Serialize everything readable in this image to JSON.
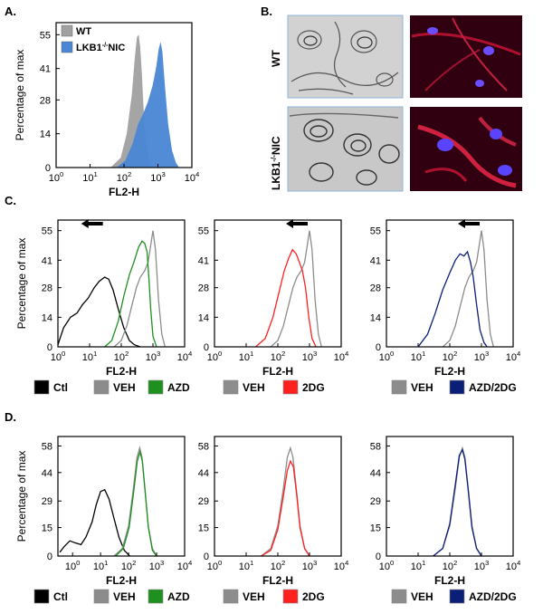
{
  "panel_labels": {
    "a": "A.",
    "b": "B.",
    "c": "C.",
    "d": "D."
  },
  "microscopy": {
    "row_wt": "WT",
    "row_ko": "LKB1-/-NIC",
    "ko_sup": "-/-"
  },
  "colors": {
    "wt_fill": "#a0a0a0",
    "ko_fill": "#4a86d4",
    "ctl": "#000000",
    "veh": "#8c8c8c",
    "azd": "#1f8f1f",
    "dg": "#ff2020",
    "azddg": "#0b1f78",
    "em_bg": "#d2d2d2",
    "em_border": "#8fb3d9",
    "fluo_bg": "#300010"
  },
  "chart_data": [
    {
      "id": "A",
      "type": "area",
      "xlabel": "FL2-H",
      "ylabel": "Percentage of max",
      "xscale": "log",
      "xlim": [
        1,
        10000
      ],
      "xtick_labels": [
        "10^0",
        "10^1",
        "10^2",
        "10^3",
        "10^4"
      ],
      "ylim": [
        0,
        60
      ],
      "yticks": [
        0,
        14,
        28,
        41,
        55
      ],
      "legend": [
        {
          "name": "WT",
          "color": "#a0a0a0"
        },
        {
          "name": "LKB1-/-NIC",
          "color": "#4a86d4"
        }
      ],
      "series": [
        {
          "name": "WT",
          "style": "fill",
          "color": "#a0a0a0",
          "x": [
            40,
            80,
            120,
            170,
            210,
            240,
            270,
            300,
            340,
            380,
            440,
            520,
            620,
            700
          ],
          "y": [
            0,
            4,
            14,
            30,
            46,
            54,
            55,
            50,
            38,
            24,
            12,
            5,
            1,
            0
          ]
        },
        {
          "name": "LKB1-/-NIC",
          "style": "fill",
          "color": "#4a86d4",
          "x": [
            60,
            110,
            180,
            260,
            360,
            500,
            700,
            900,
            1050,
            1200,
            1350,
            1600,
            2000,
            2600,
            3400,
            4200
          ],
          "y": [
            0,
            3,
            10,
            18,
            22,
            27,
            34,
            42,
            49,
            52,
            48,
            34,
            18,
            7,
            2,
            0
          ]
        }
      ]
    },
    {
      "id": "C1",
      "type": "line",
      "xlabel": "FL2-H",
      "ylabel": "Percentage of max",
      "xscale": "log",
      "xlim": [
        1,
        10000
      ],
      "xtick_labels": [
        "10^0",
        "10^1",
        "10^2",
        "10^3",
        "10^4"
      ],
      "ylim": [
        0,
        60
      ],
      "yticks": [
        0,
        14,
        28,
        41,
        55
      ],
      "arrow": "left",
      "legend": [
        {
          "name": "Ctl",
          "color": "#000000"
        },
        {
          "name": "VEH",
          "color": "#8c8c8c"
        },
        {
          "name": "AZD",
          "color": "#1f8f1f"
        }
      ],
      "series": [
        {
          "name": "Ctl",
          "color": "#000000",
          "x": [
            1,
            1.5,
            2.5,
            4,
            6,
            9,
            14,
            20,
            30,
            40,
            55,
            80,
            120,
            180,
            260,
            400
          ],
          "y": [
            1,
            9,
            14,
            16,
            20,
            23,
            28,
            31,
            33,
            32,
            27,
            18,
            9,
            3,
            1,
            0
          ]
        },
        {
          "name": "VEH",
          "color": "#8c8c8c",
          "x": [
            60,
            100,
            150,
            220,
            300,
            400,
            550,
            700,
            850,
            1000,
            1200,
            1500,
            1900,
            2400
          ],
          "y": [
            0,
            3,
            10,
            20,
            28,
            33,
            36,
            40,
            48,
            55,
            46,
            22,
            6,
            0
          ]
        },
        {
          "name": "AZD",
          "color": "#1f8f1f",
          "x": [
            30,
            50,
            80,
            120,
            180,
            250,
            350,
            450,
            550,
            650,
            750,
            850,
            1000,
            1300
          ],
          "y": [
            0,
            3,
            12,
            24,
            34,
            40,
            47,
            50,
            49,
            45,
            32,
            18,
            5,
            0
          ]
        }
      ]
    },
    {
      "id": "C2",
      "type": "line",
      "xlabel": "FL2-H",
      "ylabel": "",
      "xscale": "log",
      "xlim": [
        1,
        10000
      ],
      "xtick_labels": [
        "10^0",
        "10^1",
        "10^2",
        "10^3",
        "10^4"
      ],
      "ylim": [
        0,
        60
      ],
      "yticks": [
        0,
        14,
        28,
        41,
        55
      ],
      "arrow": "left",
      "legend": [
        {
          "name": "VEH",
          "color": "#8c8c8c"
        },
        {
          "name": "2DG",
          "color": "#ff2020"
        }
      ],
      "series": [
        {
          "name": "VEH",
          "color": "#8c8c8c",
          "x": [
            60,
            100,
            150,
            220,
            300,
            400,
            550,
            700,
            850,
            1000,
            1200,
            1500,
            1900,
            2400
          ],
          "y": [
            0,
            3,
            10,
            20,
            28,
            33,
            36,
            40,
            48,
            55,
            46,
            22,
            6,
            0
          ]
        },
        {
          "name": "2DG",
          "color": "#ff2020",
          "x": [
            20,
            40,
            70,
            110,
            160,
            220,
            290,
            380,
            480,
            600,
            750,
            950,
            1200,
            1600
          ],
          "y": [
            0,
            4,
            14,
            26,
            36,
            42,
            46,
            44,
            40,
            36,
            28,
            14,
            4,
            0
          ]
        }
      ]
    },
    {
      "id": "C3",
      "type": "line",
      "xlabel": "FL2-H",
      "ylabel": "",
      "xscale": "log",
      "xlim": [
        1,
        10000
      ],
      "xtick_labels": [
        "10^0",
        "10^1",
        "10^2",
        "10^3",
        "10^4"
      ],
      "ylim": [
        0,
        60
      ],
      "yticks": [
        0,
        14,
        28,
        41,
        55
      ],
      "arrow": "left",
      "legend": [
        {
          "name": "VEH",
          "color": "#8c8c8c"
        },
        {
          "name": "AZD/2DG",
          "color": "#0b1f78"
        }
      ],
      "series": [
        {
          "name": "VEH",
          "color": "#8c8c8c",
          "x": [
            60,
            100,
            150,
            220,
            300,
            400,
            550,
            700,
            850,
            1000,
            1200,
            1500,
            1900,
            2400
          ],
          "y": [
            0,
            3,
            10,
            20,
            28,
            33,
            36,
            40,
            48,
            55,
            46,
            22,
            6,
            0
          ]
        },
        {
          "name": "AZD/2DG",
          "color": "#0b1f78",
          "x": [
            10,
            20,
            35,
            60,
            100,
            150,
            210,
            280,
            360,
            450,
            550,
            700,
            900,
            1200,
            1500
          ],
          "y": [
            0,
            6,
            16,
            27,
            35,
            41,
            44,
            43,
            45,
            40,
            33,
            20,
            8,
            2,
            0
          ]
        }
      ]
    },
    {
      "id": "D1",
      "type": "line",
      "xlabel": "FL2-H",
      "ylabel": "Percentage of max",
      "xscale": "log",
      "xlim": [
        0.3,
        10000
      ],
      "xtick_labels": [
        "10^0",
        "10^1",
        "10^2",
        "10^3",
        "10^4"
      ],
      "ylim": [
        0,
        63
      ],
      "yticks": [
        0,
        15,
        29,
        44,
        58
      ],
      "legend": [
        {
          "name": "Ctl",
          "color": "#000000"
        },
        {
          "name": "VEH",
          "color": "#8c8c8c"
        },
        {
          "name": "AZD",
          "color": "#1f8f1f"
        }
      ],
      "series": [
        {
          "name": "Ctl",
          "color": "#000000",
          "x": [
            0.35,
            0.5,
            0.8,
            1.2,
            2,
            3,
            5,
            7,
            10,
            14,
            20,
            30,
            45,
            70,
            110
          ],
          "y": [
            2,
            5,
            8,
            7,
            6,
            10,
            18,
            27,
            34,
            35,
            30,
            20,
            10,
            3,
            0
          ]
        },
        {
          "name": "VEH",
          "color": "#8c8c8c",
          "x": [
            30,
            60,
            100,
            150,
            200,
            250,
            300,
            380,
            500,
            700,
            1000
          ],
          "y": [
            0,
            4,
            16,
            36,
            52,
            57,
            52,
            36,
            16,
            4,
            0
          ]
        },
        {
          "name": "AZD",
          "color": "#1f8f1f",
          "x": [
            35,
            65,
            105,
            155,
            205,
            255,
            310,
            390,
            510,
            710,
            1000
          ],
          "y": [
            0,
            4,
            15,
            35,
            50,
            55,
            50,
            34,
            15,
            3,
            0
          ]
        }
      ]
    },
    {
      "id": "D2",
      "type": "line",
      "xlabel": "FL2-H",
      "ylabel": "",
      "xscale": "log",
      "xlim": [
        1,
        10000
      ],
      "xtick_labels": [
        "10^0",
        "10^1",
        "10^2",
        "10^3",
        "10^4"
      ],
      "ylim": [
        0,
        63
      ],
      "yticks": [
        0,
        15,
        29,
        44,
        58
      ],
      "legend": [
        {
          "name": "VEH",
          "color": "#8c8c8c"
        },
        {
          "name": "2DG",
          "color": "#ff2020"
        }
      ],
      "series": [
        {
          "name": "VEH",
          "color": "#8c8c8c",
          "x": [
            30,
            60,
            100,
            150,
            200,
            250,
            300,
            380,
            500,
            700,
            1000
          ],
          "y": [
            0,
            4,
            16,
            36,
            52,
            57,
            52,
            36,
            16,
            4,
            0
          ]
        },
        {
          "name": "2DG",
          "color": "#ff2020",
          "x": [
            30,
            60,
            100,
            150,
            200,
            250,
            310,
            390,
            500,
            700,
            1000
          ],
          "y": [
            0,
            3,
            14,
            32,
            45,
            50,
            47,
            33,
            15,
            4,
            0
          ]
        }
      ]
    },
    {
      "id": "D3",
      "type": "line",
      "xlabel": "FL2-H",
      "ylabel": "",
      "xscale": "log",
      "xlim": [
        1,
        10000
      ],
      "xtick_labels": [
        "10^0",
        "10^1",
        "10^2",
        "10^3",
        "10^4"
      ],
      "ylim": [
        0,
        63
      ],
      "yticks": [
        0,
        15,
        29,
        44,
        58
      ],
      "legend": [
        {
          "name": "VEH",
          "color": "#8c8c8c"
        },
        {
          "name": "AZD/2DG",
          "color": "#0b1f78"
        }
      ],
      "series": [
        {
          "name": "VEH",
          "color": "#8c8c8c",
          "x": [
            30,
            60,
            100,
            150,
            200,
            250,
            300,
            380,
            500,
            700,
            1000
          ],
          "y": [
            0,
            4,
            16,
            36,
            52,
            57,
            52,
            36,
            16,
            4,
            0
          ]
        },
        {
          "name": "AZD/2DG",
          "color": "#0b1f78",
          "x": [
            30,
            60,
            100,
            150,
            200,
            250,
            300,
            380,
            500,
            700,
            1000
          ],
          "y": [
            0,
            4,
            17,
            38,
            53,
            56,
            51,
            35,
            15,
            4,
            0
          ]
        }
      ]
    }
  ]
}
